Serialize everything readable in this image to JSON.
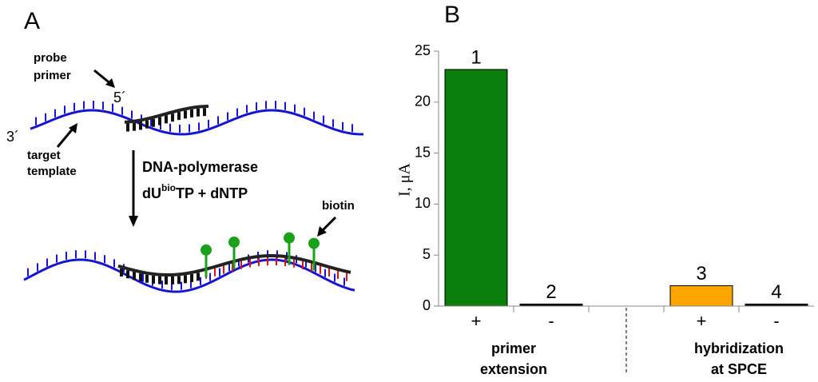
{
  "panel_a": {
    "label": "A",
    "probe_primer": [
      "probe",
      "primer"
    ],
    "five_prime": "5´",
    "three_prime": "3´",
    "target_template": [
      "target",
      "template"
    ],
    "enzyme": "DNA-polymerase",
    "reagent": {
      "pre": "dU",
      "sup": "bio",
      "post": "TP + dNTP"
    },
    "biotin": "biotin"
  },
  "chart_data": {
    "type": "bar",
    "panel_label": "B",
    "y_label": "I, μA",
    "categories": [
      "+",
      "-",
      null,
      "+",
      "-"
    ],
    "values": [
      23.2,
      0.2,
      null,
      2.0,
      0.2
    ],
    "bar_labels": [
      "1",
      "2",
      null,
      "3",
      "4"
    ],
    "colors": [
      "#0a7d0a",
      "#000000",
      null,
      "#ffa500",
      "#000000"
    ],
    "group_labels": [
      [
        "primer",
        "extension"
      ],
      [
        "hybridization",
        "at SPCE"
      ]
    ],
    "ylim": [
      0,
      25
    ],
    "yticks": [
      0,
      5,
      10,
      15,
      20,
      25
    ]
  }
}
